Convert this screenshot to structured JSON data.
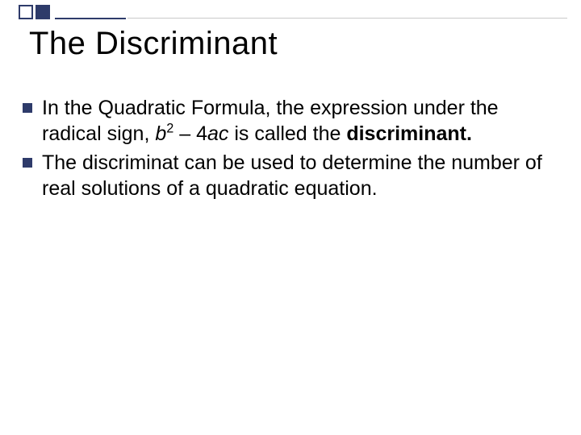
{
  "slide": {
    "title": "The Discriminant",
    "accent_color": "#2e3b6a",
    "background_color": "#ffffff",
    "title_fontsize": 40,
    "body_fontsize": 25,
    "bullets": [
      {
        "pre": "In the Quadratic Formula, the expression under the radical sign, ",
        "var1": "b",
        "sup": "2",
        "mid": " – 4",
        "var2": "ac",
        "post": " is called the ",
        "bold": "discriminant."
      },
      {
        "text": "The discriminat can be used to determine the number of real solutions of a quadratic equation."
      }
    ]
  }
}
